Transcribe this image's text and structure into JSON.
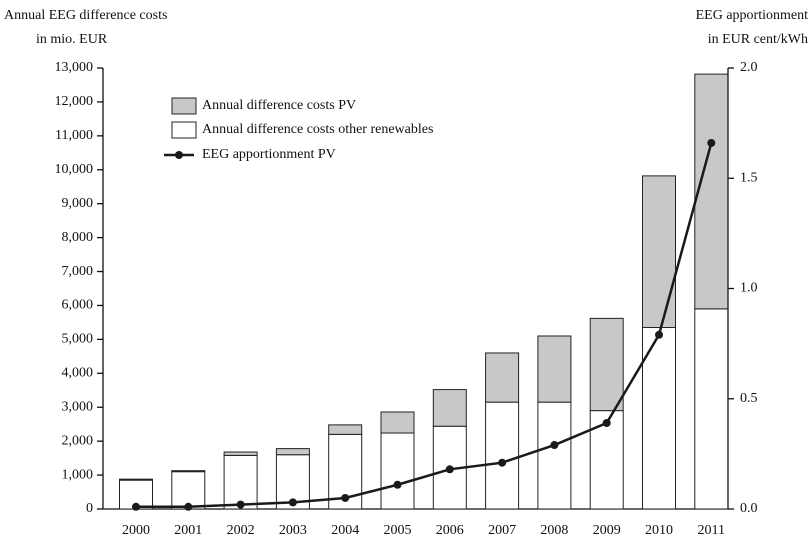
{
  "chart_data": {
    "type": "bar",
    "y_label": [
      "Annual EEG difference costs",
      "in mio. EUR"
    ],
    "y2_label": [
      "EEG apportionment",
      "in EUR cent/kWh"
    ],
    "categories": [
      "2000",
      "2001",
      "2002",
      "2003",
      "2004",
      "2005",
      "2006",
      "2007",
      "2008",
      "2009",
      "2010",
      "2011"
    ],
    "stacked": true,
    "series": [
      {
        "name": "Annual difference costs PV",
        "color": "#c8c8c8",
        "values": [
          30,
          30,
          100,
          180,
          280,
          620,
          1080,
          1450,
          1950,
          2720,
          4470,
          6920
        ]
      },
      {
        "name": "Annual difference costs other renewables",
        "color": "#ffffff",
        "values": [
          850,
          1100,
          1580,
          1600,
          2200,
          2240,
          2440,
          3150,
          3150,
          2900,
          5350,
          5900
        ]
      },
      {
        "name": "EEG apportionment PV",
        "color": "#1a1a1a",
        "type": "line",
        "axis": "y2",
        "values": [
          0.01,
          0.01,
          0.02,
          0.03,
          0.05,
          0.11,
          0.18,
          0.21,
          0.29,
          0.39,
          0.79,
          1.66
        ]
      }
    ],
    "ylim": [
      0,
      13000
    ],
    "yticks": [
      0,
      {
        "value": 1000,
        "label": "1,000"
      },
      {
        "value": 2000,
        "label": "2,000"
      },
      {
        "value": 3000,
        "label": "3,000"
      },
      {
        "value": 4000,
        "label": "4,000"
      },
      {
        "value": 5000,
        "label": "5,000"
      },
      {
        "value": 6000,
        "label": "6,000"
      },
      {
        "value": 7000,
        "label": "7,000"
      },
      {
        "value": 8000,
        "label": "8,000"
      },
      {
        "value": 9000,
        "label": "9,000"
      },
      {
        "value": 10000,
        "label": "10,000"
      },
      {
        "value": 11000,
        "label": "11,000"
      },
      {
        "value": 12000,
        "label": "12,000"
      },
      {
        "value": 13000,
        "label": "13,000"
      }
    ],
    "y2lim": [
      0,
      2
    ],
    "y2ticks": [
      {
        "value": 0,
        "label": "0.0"
      },
      {
        "value": 0.5,
        "label": "0.5"
      },
      {
        "value": 1,
        "label": "1.0"
      },
      {
        "value": 1.5,
        "label": "1.5"
      },
      {
        "value": 2,
        "label": "2.0"
      }
    ],
    "legend": "upper left"
  }
}
